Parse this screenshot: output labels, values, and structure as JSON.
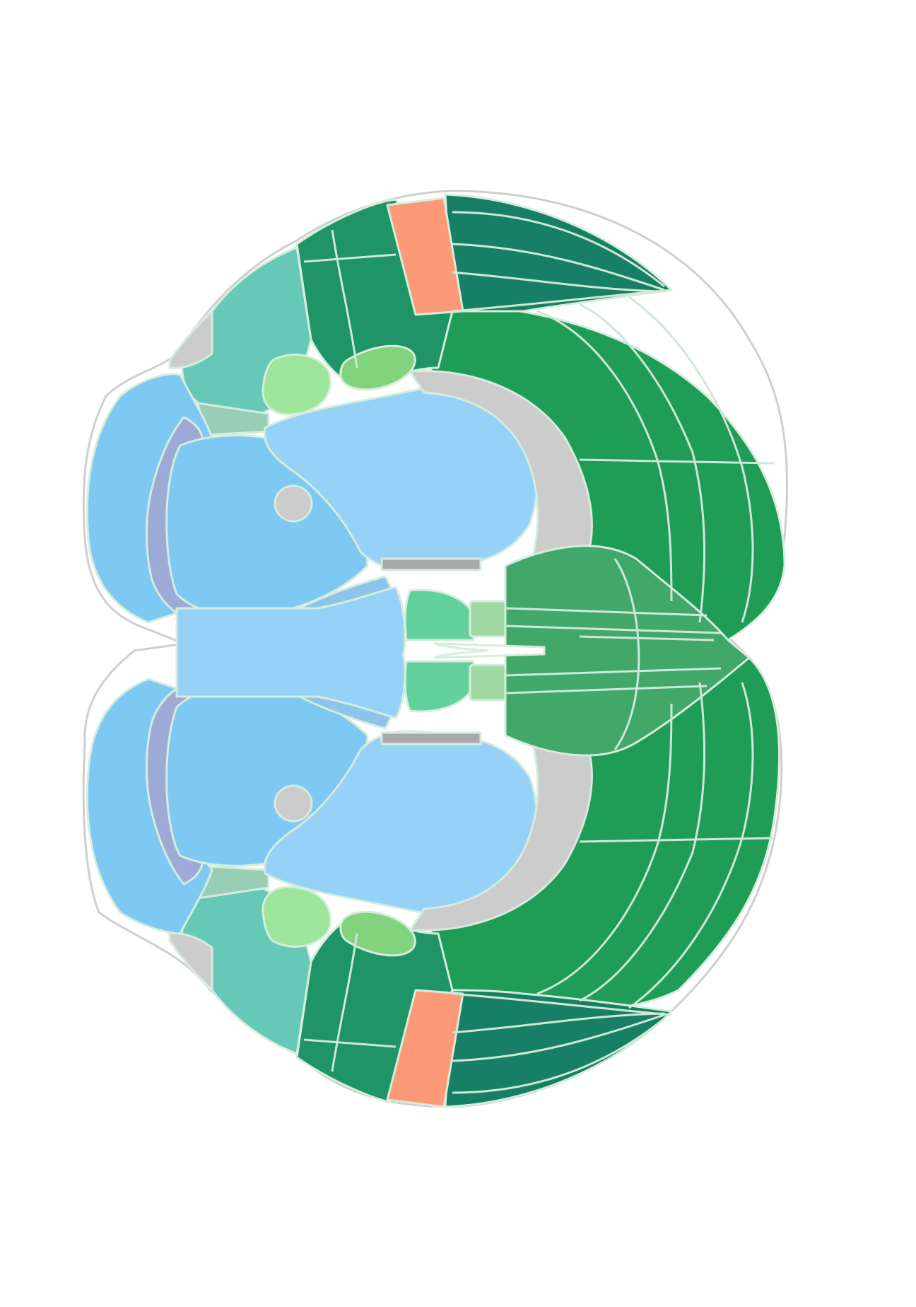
{
  "colors": {
    "background": "#ffffff",
    "outline": "#cfcfcf",
    "boundary": "#d6ecdc",
    "isocortex": "#1f9d57",
    "isocortex_dorsal": "#178064",
    "isocortex_upper": "#1f9466",
    "somatosensory_strip": "#fc9a78",
    "olfactory_area": "#66c9b7",
    "piriform_small": "#9de59b",
    "insular_small": "#82d37d",
    "ventral_olfactory": "#98cdb6",
    "striatum_large": "#96d2f7",
    "striatum_ventral": "#7ec8f4",
    "medial_nucleus": "#8dc4ea",
    "ventricle_band": "#9daad6",
    "white_matter": "#cccccc",
    "fiber_dark": "#a9a9a9",
    "septal_nuclei": "#62d09c",
    "septal_small": "#9fd8a3",
    "midline_cortex": "#42a86a",
    "midline_gap": "#ffffff"
  }
}
